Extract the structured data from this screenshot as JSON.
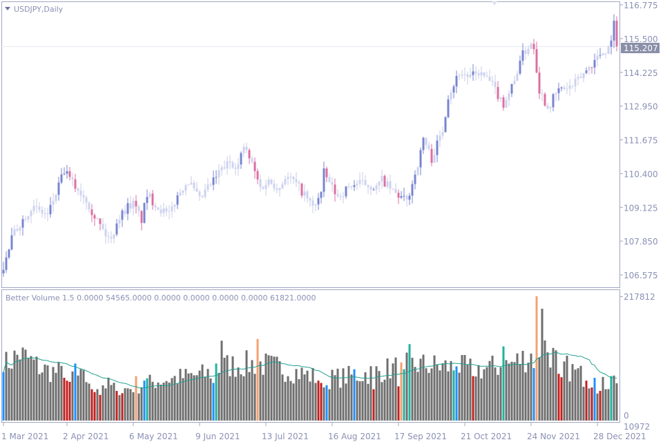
{
  "chart_data": [
    {
      "type": "candlestick",
      "title": "USDJPY,Daily",
      "symbol": "USDJPY",
      "timeframe": "Daily",
      "ylim": [
        106.2,
        117.0
      ],
      "y_ticks": [
        "116.775",
        "115.500",
        "114.225",
        "112.950",
        "111.675",
        "110.400",
        "109.125",
        "107.850",
        "106.575"
      ],
      "y_tick_values": [
        116.775,
        115.5,
        114.225,
        112.95,
        111.675,
        110.4,
        109.125,
        107.85,
        106.575
      ],
      "current_price": 115.207,
      "current_price_label": "115.207",
      "bar_count": 223,
      "close_anchors": [
        [
          0,
          106.78
        ],
        [
          3,
          107.96
        ],
        [
          5,
          108.35
        ],
        [
          10,
          109.13
        ],
        [
          16,
          108.82
        ],
        [
          19,
          109.65
        ],
        [
          22,
          110.49
        ],
        [
          26,
          109.91
        ],
        [
          30,
          109.44
        ],
        [
          32,
          109.0
        ],
        [
          37,
          108.09
        ],
        [
          39,
          107.88
        ],
        [
          41,
          108.61
        ],
        [
          45,
          109.18
        ],
        [
          47,
          109.26
        ],
        [
          50,
          108.66
        ],
        [
          52,
          109.6
        ],
        [
          56,
          109.13
        ],
        [
          60,
          108.82
        ],
        [
          62,
          109.34
        ],
        [
          65,
          109.91
        ],
        [
          67,
          110.12
        ],
        [
          71,
          109.39
        ],
        [
          74,
          109.86
        ],
        [
          76,
          110.12
        ],
        [
          79,
          110.57
        ],
        [
          82,
          110.83
        ],
        [
          85,
          110.7
        ],
        [
          87,
          111.43
        ],
        [
          90,
          110.75
        ],
        [
          93,
          109.86
        ],
        [
          96,
          110.12
        ],
        [
          100,
          109.86
        ],
        [
          102,
          110.3
        ],
        [
          105,
          110.12
        ],
        [
          109,
          109.6
        ],
        [
          112,
          109.13
        ],
        [
          115,
          109.65
        ],
        [
          116,
          110.43
        ],
        [
          119,
          109.86
        ],
        [
          121,
          109.52
        ],
        [
          126,
          109.97
        ],
        [
          130,
          110.04
        ],
        [
          135,
          109.86
        ],
        [
          137,
          110.17
        ],
        [
          141,
          109.71
        ],
        [
          146,
          109.34
        ],
        [
          149,
          110.38
        ],
        [
          151,
          111.17
        ],
        [
          152,
          111.74
        ],
        [
          155,
          110.96
        ],
        [
          159,
          112.05
        ],
        [
          161,
          113.36
        ],
        [
          162,
          113.56
        ],
        [
          165,
          114.22
        ],
        [
          169,
          114.04
        ],
        [
          172,
          114.22
        ],
        [
          176,
          113.88
        ],
        [
          181,
          113.04
        ],
        [
          185,
          113.88
        ],
        [
          187,
          114.74
        ],
        [
          191,
          115.34
        ],
        [
          192,
          115.2
        ],
        [
          194,
          113.56
        ],
        [
          197,
          112.91
        ],
        [
          201,
          113.56
        ],
        [
          206,
          113.69
        ],
        [
          211,
          114.3
        ],
        [
          216,
          114.92
        ],
        [
          219,
          115.13
        ],
        [
          221,
          116.04
        ],
        [
          222,
          115.21
        ]
      ]
    },
    {
      "type": "bar",
      "title": "Better Volume 1.5 0.0000 54565.0000 0.0000 0.0000 0.0000 0.0000 61821.0000",
      "ylim": [
        0,
        217812
      ],
      "y_ticks": [
        "217812",
        "0",
        "10972"
      ],
      "volume_anchors": [
        [
          0,
          96000
        ],
        [
          6,
          117000
        ],
        [
          14,
          90000
        ],
        [
          24,
          80000
        ],
        [
          36,
          64000
        ],
        [
          44,
          55000
        ],
        [
          56,
          70000
        ],
        [
          74,
          82000
        ],
        [
          80,
          96000
        ],
        [
          92,
          100000
        ],
        [
          104,
          88000
        ],
        [
          116,
          72000
        ],
        [
          129,
          80000
        ],
        [
          139,
          90000
        ],
        [
          149,
          98000
        ],
        [
          161,
          94000
        ],
        [
          174,
          90000
        ],
        [
          184,
          100000
        ],
        [
          191,
          115000
        ],
        [
          196,
          130000
        ],
        [
          201,
          100000
        ],
        [
          209,
          80000
        ],
        [
          216,
          60000
        ],
        [
          222,
          75000
        ]
      ],
      "special_bars": [
        [
          0,
          "blue",
          85000
        ],
        [
          26,
          "blue",
          100000
        ],
        [
          22,
          "red",
          75000
        ],
        [
          23,
          "red",
          70000
        ],
        [
          24,
          "red",
          68000
        ],
        [
          32,
          "red",
          55000
        ],
        [
          33,
          "red",
          50000
        ],
        [
          35,
          "red",
          45000
        ],
        [
          41,
          "red",
          52000
        ],
        [
          43,
          "red",
          48000
        ],
        [
          48,
          "salmon",
          78000
        ],
        [
          51,
          "blue",
          70000
        ],
        [
          52,
          "teal",
          74000
        ],
        [
          76,
          "blue",
          66000
        ],
        [
          77,
          "teal",
          100000
        ],
        [
          79,
          "gray",
          140000
        ],
        [
          92,
          "salmon",
          143000
        ],
        [
          114,
          "red",
          70000
        ],
        [
          115,
          "red",
          66000
        ],
        [
          117,
          "blue",
          62000
        ],
        [
          127,
          "blue",
          90000
        ],
        [
          134,
          "red",
          55000
        ],
        [
          143,
          "red",
          60000
        ],
        [
          144,
          "salmon",
          102000
        ],
        [
          145,
          "teal",
          90000
        ],
        [
          147,
          "teal",
          134000
        ],
        [
          163,
          "teal",
          88000
        ],
        [
          164,
          "blue",
          95000
        ],
        [
          170,
          "red",
          78000
        ],
        [
          181,
          "teal",
          130000
        ],
        [
          192,
          "blue",
          92000
        ],
        [
          193,
          "salmon",
          217812
        ],
        [
          195,
          "gray",
          196000
        ],
        [
          201,
          "red",
          82000
        ],
        [
          202,
          "red",
          76000
        ],
        [
          211,
          "red",
          70000
        ],
        [
          213,
          "red",
          58000
        ],
        [
          214,
          "blue",
          75000
        ],
        [
          216,
          "red",
          52000
        ],
        [
          220,
          "teal",
          78000
        ]
      ],
      "ma_period": 20
    }
  ],
  "x_ticks": [
    "1 Mar 2021",
    "2 Apr 2021",
    "6 May 2021",
    "9 Jun 2021",
    "13 Jul 2021",
    "16 Aug 2021",
    "17 Sep 2021",
    "21 Oct 2021",
    "24 Nov 2021",
    "28 Dec 2021"
  ],
  "x_tick_bars": [
    0,
    23,
    47,
    71,
    95,
    119,
    143,
    167,
    191,
    215
  ],
  "colors": {
    "up_strong": "#7884d0",
    "down_strong": "#dc6fa0",
    "neutral_candle": "#cdd2f0",
    "vol_gray": "#6e6e6e",
    "vol_red": "#c0201f",
    "vol_blue": "#1e90ff",
    "vol_salmon": "#f4a070",
    "vol_teal": "#20b2a0",
    "ma_line": "#20a090",
    "axis": "#a0a4c4",
    "price_label_bg": "#8a8fa8"
  }
}
